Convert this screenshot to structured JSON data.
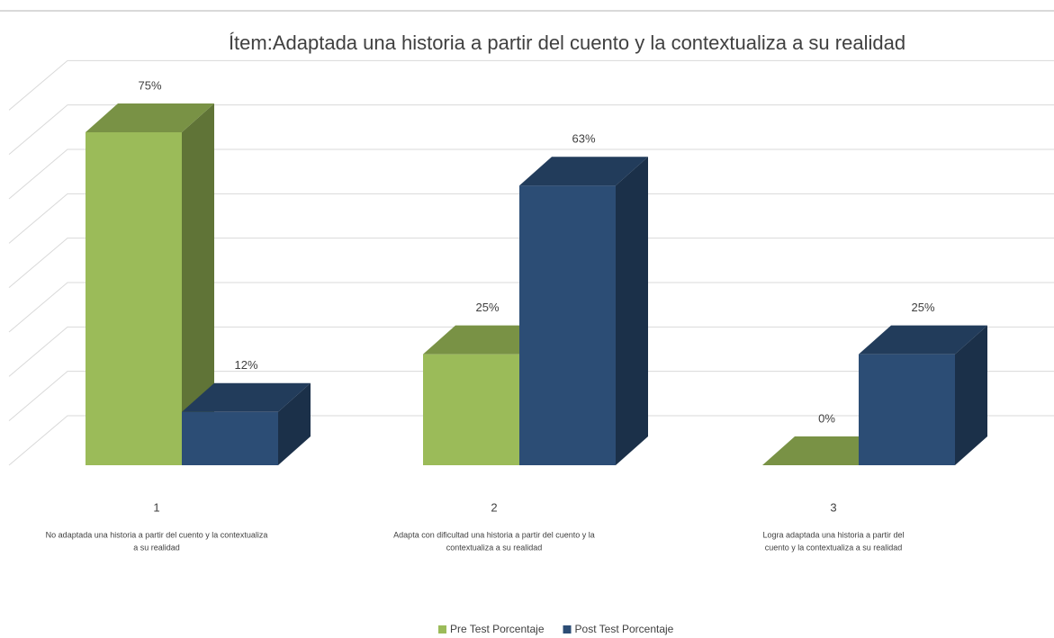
{
  "chart_data": {
    "type": "bar3d",
    "title": "Ítem:Adaptada una historia a partir del cuento y la contextualiza a su realidad",
    "categories": [
      "1",
      "2",
      "3"
    ],
    "category_descriptions": [
      [
        "No adaptada una historia a partir del cuento y la contextualiza",
        "a su realidad"
      ],
      [
        "Adapta con dificultad  una historia a partir del cuento y la",
        "contextualiza a su realidad"
      ],
      [
        "Logra adaptada una historia a partir del",
        "cuento y la contextualiza a su realidad"
      ]
    ],
    "series": [
      {
        "name": "Pre Test Porcentaje",
        "color": "#9bbb59",
        "values": [
          75,
          25,
          0
        ],
        "value_labels": [
          "75%",
          "25%",
          "0%"
        ]
      },
      {
        "name": "Post Test Porcentaje",
        "color": "#2c4d75",
        "values": [
          12,
          63,
          25
        ],
        "value_labels": [
          "12%",
          "63%",
          "25%"
        ]
      }
    ],
    "ylim": [
      0,
      80
    ],
    "yticks": [
      0,
      10,
      20,
      30,
      40,
      50,
      60,
      70,
      80
    ],
    "grid": true,
    "show_tick_labels": false,
    "legend": "bottom"
  }
}
